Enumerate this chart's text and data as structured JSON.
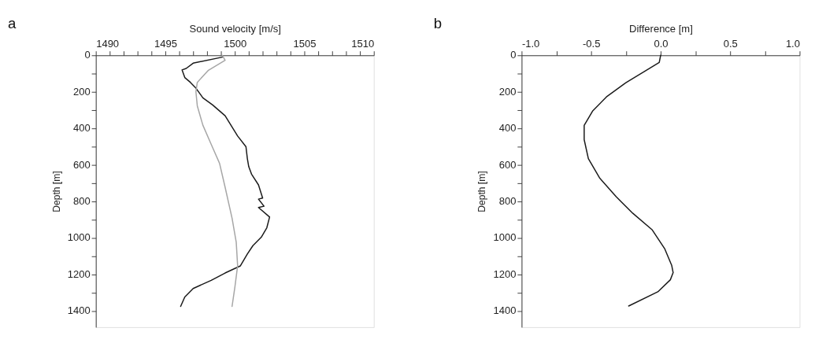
{
  "chart_data": [
    {
      "type": "line",
      "title": "a",
      "xlabel": "Sound velocity [m/s]",
      "ylabel": "Depth [m]",
      "xlim": [
        1490,
        1510
      ],
      "ylim": [
        1490,
        0
      ],
      "xticks": [
        1490,
        {
          "value": 1491,
          "label": null
        },
        {
          "value": 1492,
          "label": null
        },
        {
          "value": 1493,
          "label": null
        },
        {
          "value": 1494,
          "label": null
        },
        1495,
        {
          "value": 1496,
          "label": null
        },
        {
          "value": 1497,
          "label": null
        },
        {
          "value": 1498,
          "label": null
        },
        {
          "value": 1499,
          "label": null
        },
        1500,
        {
          "value": 1501,
          "label": null
        },
        {
          "value": 1502,
          "label": null
        },
        {
          "value": 1503,
          "label": null
        },
        {
          "value": 1504,
          "label": null
        },
        1505,
        {
          "value": 1506,
          "label": null
        },
        {
          "value": 1507,
          "label": null
        },
        {
          "value": 1508,
          "label": null
        },
        {
          "value": 1509,
          "label": null
        },
        1510
      ],
      "yticks": [
        0,
        {
          "value": 100,
          "label": null
        },
        200,
        {
          "value": 300,
          "label": null
        },
        400,
        {
          "value": 500,
          "label": null
        },
        600,
        {
          "value": 700,
          "label": null
        },
        800,
        {
          "value": 900,
          "label": null
        },
        1000,
        {
          "value": 1100,
          "label": null
        },
        1200,
        {
          "value": 1300,
          "label": null
        },
        1400
      ],
      "grid": false,
      "series": [
        {
          "color": "#1a1a1a",
          "x": [
            1499.1,
            1497.0,
            1496.5,
            1496.2,
            1496.4,
            1496.8,
            1497.2,
            1497.7,
            1498.4,
            1499.3,
            1500.2,
            1500.8,
            1500.9,
            1501.0,
            1501.2,
            1501.7,
            1502.0,
            1501.7,
            1502.1,
            1501.7,
            1502.5,
            1502.3,
            1501.9,
            1501.3,
            1500.9,
            1500.4,
            1499.3,
            1498.3,
            1497.0,
            1496.4,
            1496.1
          ],
          "values": [
            10,
            43,
            72,
            80,
            122,
            148,
            180,
            233,
            272,
            331,
            442,
            501,
            566,
            610,
            651,
            710,
            782,
            788,
            827,
            834,
            886,
            945,
            997,
            1043,
            1089,
            1154,
            1193,
            1233,
            1278,
            1324,
            1376
          ]
        },
        {
          "color": "#a6a6a6",
          "x": [
            1499.1,
            1499.3,
            1498.1,
            1497.3,
            1497.2,
            1497.3,
            1497.7,
            1498.3,
            1498.9,
            1499.3,
            1499.8,
            1500.1,
            1500.2,
            1500.0,
            1499.8
          ],
          "values": [
            0,
            27,
            82,
            148,
            200,
            278,
            383,
            488,
            592,
            723,
            893,
            1024,
            1154,
            1272,
            1376
          ]
        }
      ]
    },
    {
      "type": "line",
      "title": "b",
      "xlabel": "Difference [m]",
      "ylabel": "Depth [m]",
      "xlim": [
        -1.0,
        1.0
      ],
      "ylim": [
        1490,
        0
      ],
      "xticks": [
        {
          "value": -1.0,
          "label": "-1.0"
        },
        {
          "value": -0.75,
          "label": null
        },
        {
          "value": -0.5,
          "label": "-0.5"
        },
        {
          "value": -0.25,
          "label": null
        },
        {
          "value": 0.0,
          "label": "0.0"
        },
        {
          "value": 0.25,
          "label": null
        },
        {
          "value": 0.5,
          "label": "0.5"
        },
        {
          "value": 0.75,
          "label": null
        },
        {
          "value": 1.0,
          "label": "1.0"
        }
      ],
      "yticks": [
        0,
        {
          "value": 100,
          "label": null
        },
        200,
        {
          "value": 300,
          "label": null
        },
        400,
        {
          "value": 500,
          "label": null
        },
        600,
        {
          "value": 700,
          "label": null
        },
        800,
        {
          "value": 900,
          "label": null
        },
        1000,
        {
          "value": 1100,
          "label": null
        },
        1200,
        {
          "value": 1300,
          "label": null
        },
        1400
      ],
      "grid": false,
      "series": [
        {
          "color": "#1a1a1a",
          "x": [
            0.0,
            -0.01,
            -0.11,
            -0.25,
            -0.39,
            -0.49,
            -0.55,
            -0.55,
            -0.52,
            -0.44,
            -0.32,
            -0.2,
            -0.06,
            0.03,
            0.08,
            0.09,
            0.07,
            -0.02,
            -0.23
          ],
          "values": [
            0,
            39,
            85,
            150,
            228,
            306,
            384,
            462,
            566,
            671,
            775,
            866,
            957,
            1061,
            1152,
            1191,
            1230,
            1296,
            1374
          ]
        }
      ]
    }
  ]
}
